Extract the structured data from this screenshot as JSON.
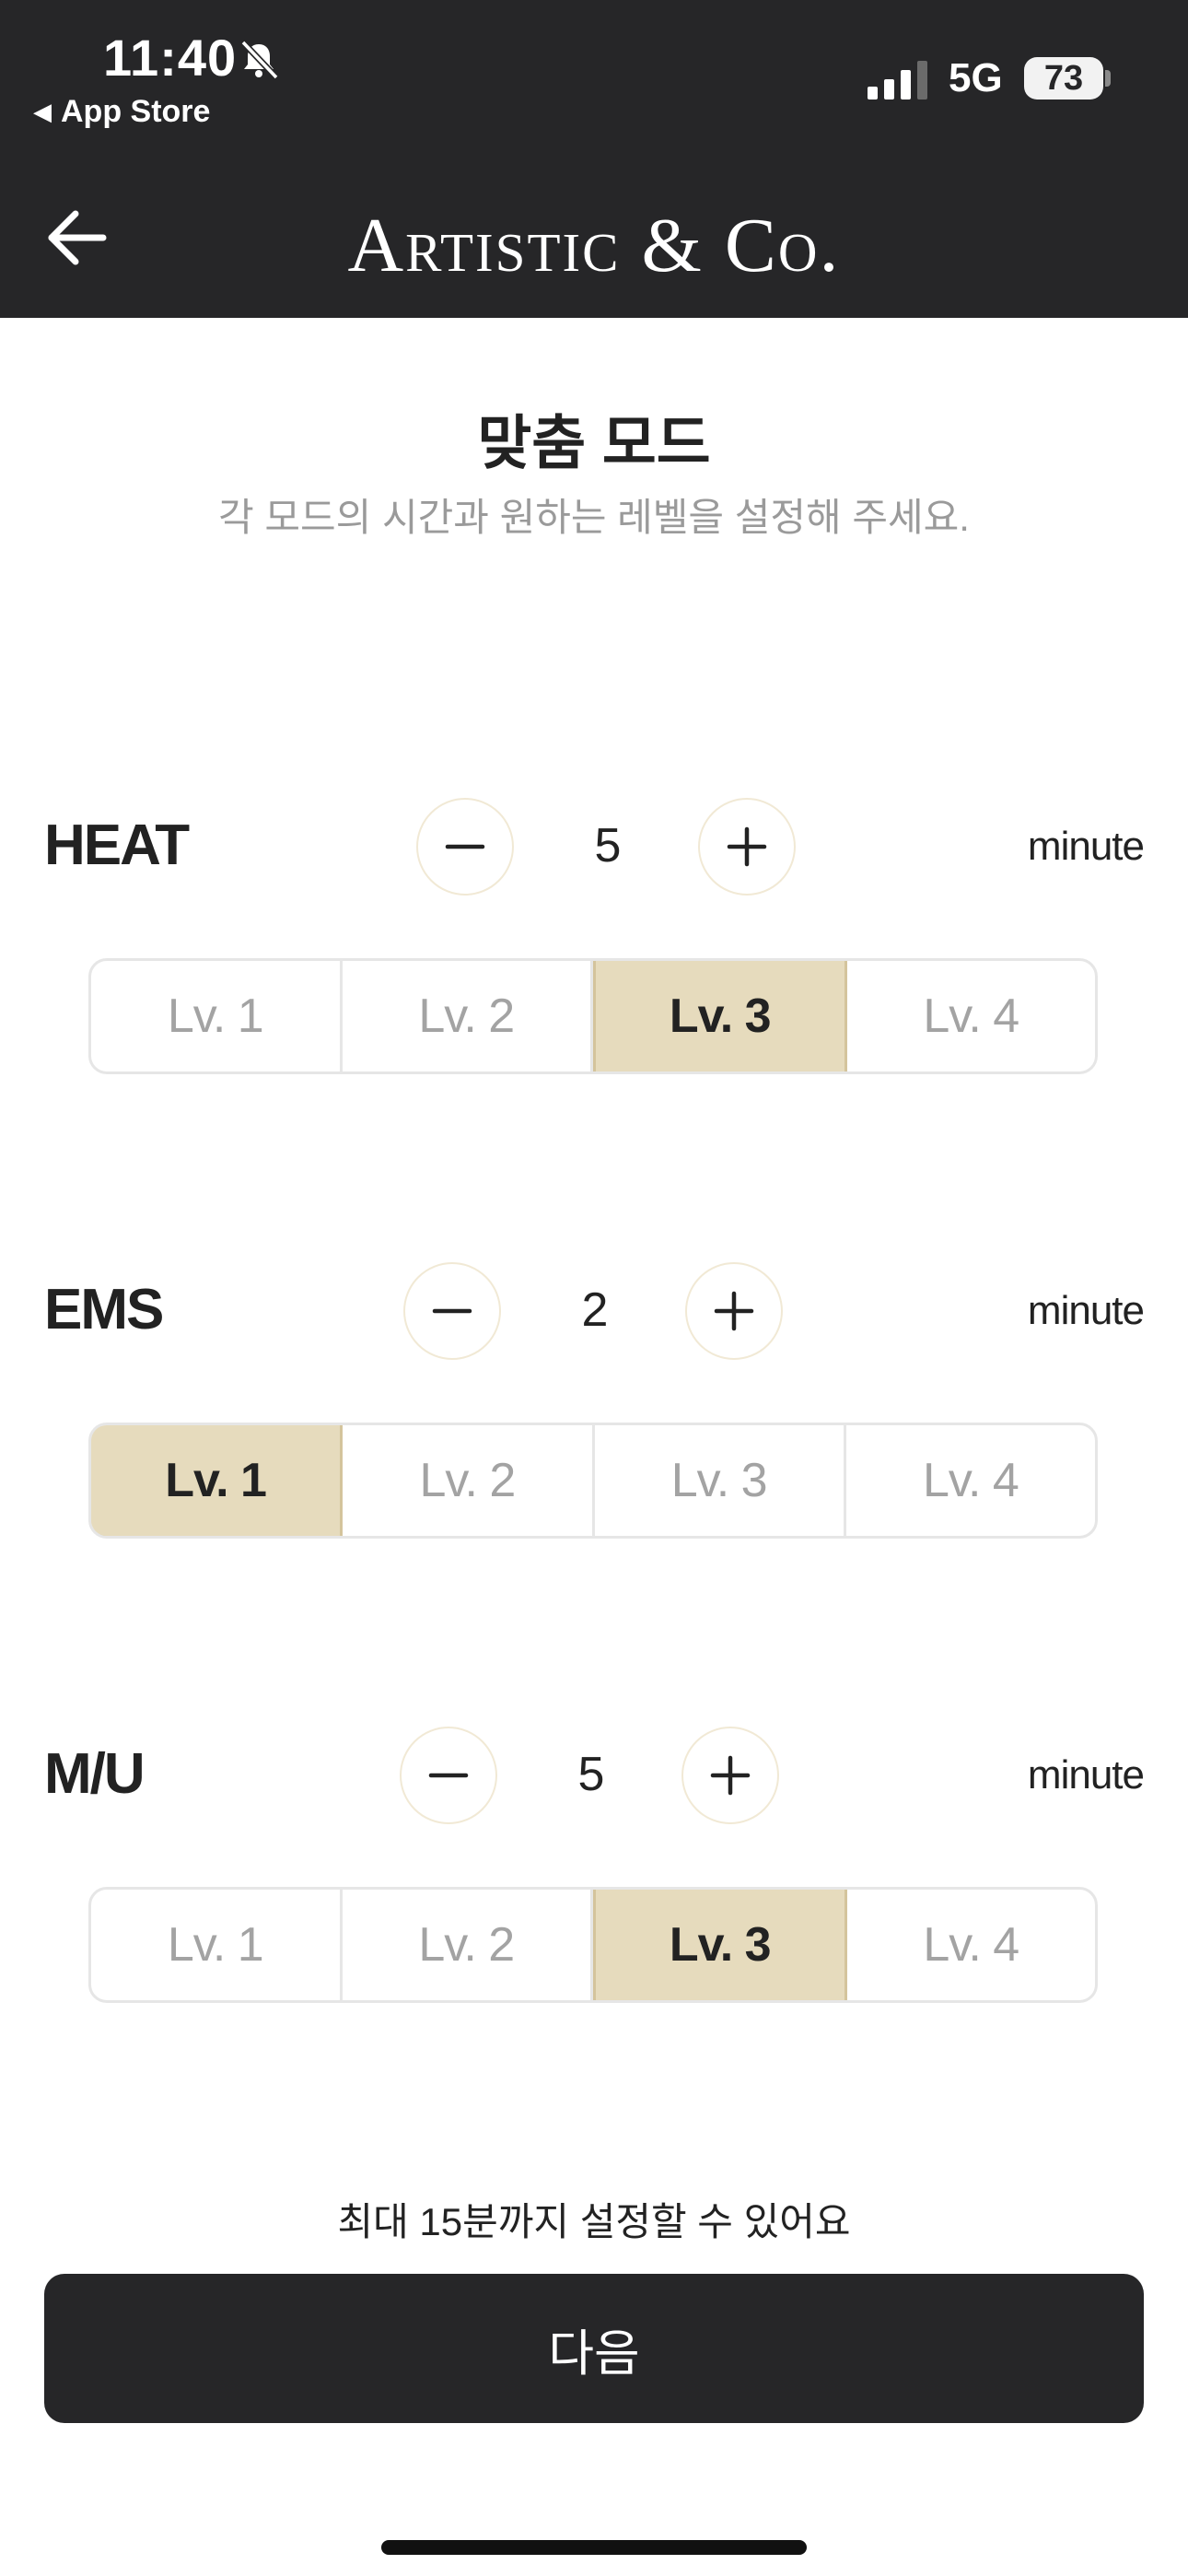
{
  "status_bar": {
    "time": "11:40",
    "back_app": "App Store",
    "network": "5G",
    "battery": "73",
    "icons": [
      "bell-slash-icon",
      "signal-icon"
    ]
  },
  "header": {
    "brand": "Artistic & Co.",
    "back_icon": "arrow-left-icon",
    "background": "#262628"
  },
  "page": {
    "title": "맞춤 모드",
    "subtitle": "각 모드의 시간과 원하는 레벨을 설정해 주세요."
  },
  "modes": [
    {
      "name": "HEAT",
      "minutes": "5",
      "unit": "minute",
      "levels": [
        "Lv. 1",
        "Lv. 2",
        "Lv. 3",
        "Lv. 4"
      ],
      "selected_level": "Lv. 3"
    },
    {
      "name": "EMS",
      "minutes": "2",
      "unit": "minute",
      "levels": [
        "Lv. 1",
        "Lv. 2",
        "Lv. 3",
        "Lv. 4"
      ],
      "selected_level": "Lv. 1"
    },
    {
      "name": "M/U",
      "minutes": "5",
      "unit": "minute",
      "levels": [
        "Lv. 1",
        "Lv. 2",
        "Lv. 3",
        "Lv. 4"
      ],
      "selected_level": "Lv. 3"
    }
  ],
  "footer": {
    "note": "최대 15분까지 설정할 수 있어요",
    "next_label": "다음"
  },
  "colors": {
    "accent": "#e6dbbd",
    "accent_border": "#d4c49c",
    "dark": "#262628",
    "muted_text": "#9a9a9a"
  }
}
